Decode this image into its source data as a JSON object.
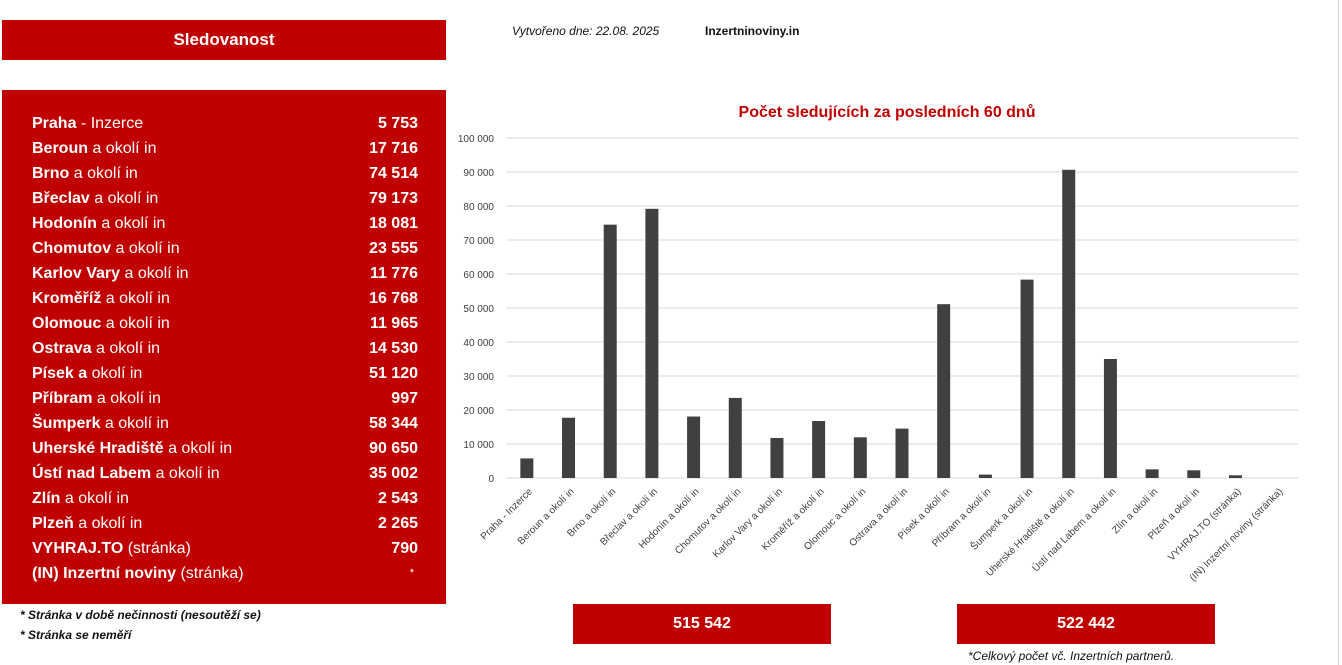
{
  "header": {
    "title": "Sledovanost",
    "created": "Vytvořeno dne: 22.08. 2025",
    "site": "Inzertninoviny.in"
  },
  "colors": {
    "accent": "#c00000",
    "bar": "#404040",
    "grid": "#d9d9d9"
  },
  "list": [
    {
      "name": "Praha",
      "suffix": " - Inzerce",
      "value": "5 753"
    },
    {
      "name": "Beroun",
      "suffix": " a okolí in",
      "value": "17 716"
    },
    {
      "name": "Brno",
      "suffix": " a okolí in",
      "value": "74 514"
    },
    {
      "name": "Břeclav",
      "suffix": " a okolí in",
      "value": "79 173"
    },
    {
      "name": "Hodonín",
      "suffix": " a okolí in",
      "value": "18 081"
    },
    {
      "name": "Chomutov",
      "suffix": " a okolí in",
      "value": "23 555"
    },
    {
      "name": "Karlov Vary",
      "suffix": " a okolí in",
      "value": "11 776"
    },
    {
      "name": "Kroměříž",
      "suffix": " a okolí in",
      "value": "16 768"
    },
    {
      "name": "Olomouc",
      "suffix": " a okolí in",
      "value": "11 965"
    },
    {
      "name": "Ostrava",
      "suffix": " a okolí in",
      "value": "14 530"
    },
    {
      "name": "Písek a",
      "suffix": " okolí in",
      "value": "51 120"
    },
    {
      "name": "Příbram",
      "suffix": " a okolí in",
      "value": "997"
    },
    {
      "name": "Šumperk",
      "suffix": " a okolí in",
      "value": "58 344"
    },
    {
      "name": "Uherské Hradiště",
      "suffix": " a okolí in",
      "value": "90 650"
    },
    {
      "name": "Ústí nad Labem",
      "suffix": " a okolí in",
      "value": "35 002"
    },
    {
      "name": "Zlín",
      "suffix": " a okolí in",
      "value": "2 543"
    },
    {
      "name": "Plzeň",
      "suffix": " a okolí in",
      "value": "2 265"
    },
    {
      "name": "VYHRAJ.TO",
      "suffix": " (stránka)",
      "value": "790"
    },
    {
      "name": "(IN) Inzertní noviny",
      "suffix": " (stránka)",
      "value": "*"
    }
  ],
  "footnotes": [
    "*  Stránka v době nečinnosti (nesoutěží se)",
    "*  Stránka se neměří"
  ],
  "totals": {
    "left": "515 542",
    "right": "522 442",
    "note": "*Celkový počet vč. Inzertních partnerů."
  },
  "chart_data": {
    "type": "bar",
    "title": "Počet sledujících za posledních 60 dnů",
    "categories": [
      "Praha - Inzerce",
      "Beroun a okolí in",
      "Brno a okolí in",
      "Břeclav a okolí in",
      "Hodonín a okolí in",
      "Chomutov a okolí in",
      "Karlov Vary a okolí in",
      "Kroměříž a okolí in",
      "Olomouc a okolí in",
      "Ostrava a okolí in",
      "Písek a okolí in",
      "Příbram a okolí in",
      "Šumperk a okolí in",
      "Uherské Hradiště a okolí in",
      "Ústí nad Labem a okolí in",
      "Zlín a okolí in",
      "Plzeň a okolí in",
      "VYHRAJ.TO (stránka)",
      "(IN) Inzertní noviny (stránka)"
    ],
    "values": [
      5753,
      17716,
      74514,
      79173,
      18081,
      23555,
      11776,
      16768,
      11965,
      14530,
      51120,
      997,
      58344,
      90650,
      35002,
      2543,
      2265,
      790,
      0
    ],
    "ylim": [
      0,
      100000
    ],
    "yticks": [
      0,
      10000,
      20000,
      30000,
      40000,
      50000,
      60000,
      70000,
      80000,
      90000,
      100000
    ],
    "ytick_labels": [
      "0",
      "10 000",
      "20 000",
      "30 000",
      "40 000",
      "50 000",
      "60 000",
      "70 000",
      "80 000",
      "90 000",
      "100 000"
    ],
    "xlabel": "",
    "ylabel": "",
    "grid": true
  }
}
